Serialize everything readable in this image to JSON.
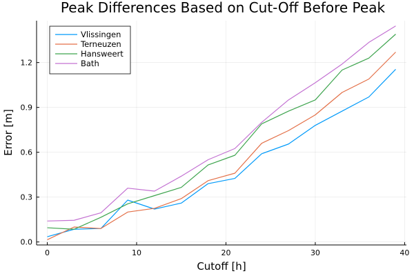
{
  "chart_data": {
    "type": "line",
    "title": "Peak Differences Based on Cut-Off Before Peak",
    "xlabel": "Cutoff [h]",
    "ylabel": "Error [m]",
    "xlim": [
      -1.2,
      40.2
    ],
    "ylim": [
      -0.02,
      1.48
    ],
    "xticks": [
      0,
      10,
      20,
      30,
      40
    ],
    "yticks": [
      0.0,
      0.3,
      0.6,
      0.9,
      1.2
    ],
    "ytick_labels": [
      "0.0",
      "0.3",
      "0.6",
      "0.9",
      "1.2"
    ],
    "grid": true,
    "legend_position": "top-left",
    "x": [
      0,
      3,
      6,
      9,
      12,
      15,
      18,
      21,
      24,
      27,
      30,
      33,
      36,
      39
    ],
    "series": [
      {
        "name": "Vlissingen",
        "color": "#009AFA",
        "values": [
          0.035,
          0.085,
          0.09,
          0.28,
          0.22,
          0.26,
          0.39,
          0.425,
          0.59,
          0.655,
          0.78,
          0.875,
          0.97,
          1.155
        ]
      },
      {
        "name": "Terneuzen",
        "color": "#E36F47",
        "values": [
          0.015,
          0.1,
          0.09,
          0.2,
          0.225,
          0.29,
          0.41,
          0.46,
          0.66,
          0.745,
          0.85,
          1.0,
          1.09,
          1.27
        ]
      },
      {
        "name": "Hansweert",
        "color": "#3EA44E",
        "values": [
          0.095,
          0.085,
          0.165,
          0.255,
          0.31,
          0.365,
          0.515,
          0.58,
          0.79,
          0.875,
          0.95,
          1.15,
          1.23,
          1.39
        ]
      },
      {
        "name": "Bath",
        "color": "#C371D2",
        "values": [
          0.14,
          0.145,
          0.195,
          0.36,
          0.34,
          0.44,
          0.55,
          0.625,
          0.8,
          0.95,
          1.065,
          1.19,
          1.335,
          1.445
        ]
      }
    ]
  }
}
